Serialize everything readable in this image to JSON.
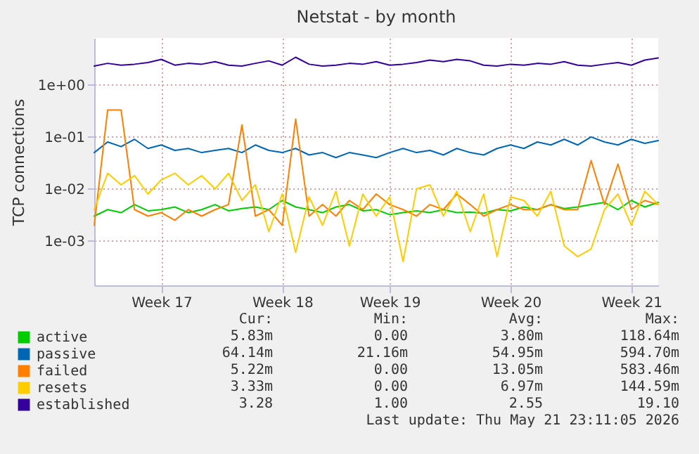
{
  "chart_data": {
    "type": "line",
    "title": "Netstat - by month",
    "ylabel": "TCP connections",
    "categories": [
      null,
      null,
      null,
      null,
      null,
      "Week 17",
      null,
      null,
      null,
      null,
      null,
      null,
      null,
      null,
      "Week 18",
      null,
      null,
      null,
      null,
      null,
      null,
      null,
      "Week 19",
      null,
      null,
      null,
      null,
      null,
      null,
      null,
      null,
      "Week 20",
      null,
      null,
      null,
      null,
      null,
      null,
      null,
      null,
      "Week 21",
      null,
      null
    ],
    "ylim": [
      0.00014,
      8
    ],
    "yticks": [
      {
        "value": 0.001,
        "label": "1e-03"
      },
      {
        "value": 0.01,
        "label": "1e-02"
      },
      {
        "value": 0.1,
        "label": "1e-01"
      },
      {
        "value": 1,
        "label": "1e+00"
      }
    ],
    "log": "y",
    "grid": true,
    "legend": "bottom left",
    "marker": "none",
    "series": [
      {
        "name": "active",
        "color": "#00cc00",
        "values": [
          0.003,
          0.004,
          0.0035,
          0.005,
          0.0038,
          0.004,
          0.0045,
          0.0035,
          0.004,
          0.005,
          0.0038,
          0.0042,
          0.0045,
          0.004,
          0.006,
          0.0045,
          0.004,
          0.0035,
          0.0045,
          0.005,
          0.0038,
          0.004,
          0.0032,
          0.0035,
          0.0038,
          0.0035,
          0.004,
          0.0035,
          0.0036,
          0.0034,
          0.004,
          0.0038,
          0.0045,
          0.004,
          0.005,
          0.0042,
          0.0045,
          0.005,
          0.0055,
          0.004,
          0.006,
          0.0045,
          0.0055
        ]
      },
      {
        "name": "passive",
        "color": "#0066b3",
        "values": [
          0.05,
          0.08,
          0.065,
          0.09,
          0.06,
          0.07,
          0.055,
          0.06,
          0.05,
          0.055,
          0.06,
          0.05,
          0.07,
          0.055,
          0.05,
          0.06,
          0.045,
          0.05,
          0.04,
          0.05,
          0.045,
          0.04,
          0.05,
          0.06,
          0.05,
          0.055,
          0.045,
          0.06,
          0.05,
          0.045,
          0.06,
          0.07,
          0.06,
          0.08,
          0.07,
          0.09,
          0.07,
          0.1,
          0.08,
          0.07,
          0.09,
          0.075,
          0.085
        ]
      },
      {
        "name": "failed",
        "color": "#ff8000",
        "values": [
          0.002,
          0.33,
          0.33,
          0.004,
          0.003,
          0.0035,
          0.0025,
          0.004,
          0.003,
          0.004,
          0.005,
          0.17,
          0.003,
          0.004,
          0.002,
          0.22,
          0.003,
          0.005,
          0.003,
          0.006,
          0.004,
          0.008,
          0.005,
          0.004,
          0.003,
          0.005,
          0.004,
          0.008,
          0.005,
          0.003,
          0.004,
          0.005,
          0.004,
          0.004,
          0.005,
          0.004,
          0.004,
          0.035,
          0.005,
          0.03,
          0.004,
          0.006,
          0.005
        ]
      },
      {
        "name": "resets",
        "color": "#ffcc00",
        "values": [
          0.004,
          0.02,
          0.012,
          0.018,
          0.008,
          0.015,
          0.02,
          0.012,
          0.018,
          0.01,
          0.02,
          0.006,
          0.012,
          0.0015,
          0.008,
          0.0006,
          0.007,
          0.002,
          0.009,
          0.0008,
          0.008,
          0.003,
          0.007,
          0.0004,
          0.01,
          0.012,
          0.003,
          0.009,
          0.0015,
          0.008,
          0.0005,
          0.007,
          0.006,
          0.003,
          0.009,
          0.0008,
          0.0005,
          0.0007,
          0.004,
          0.008,
          0.002,
          0.009,
          0.005
        ]
      },
      {
        "name": "established",
        "color": "#330099",
        "values": [
          2.3,
          2.6,
          2.4,
          2.5,
          2.7,
          3.1,
          2.4,
          2.6,
          2.5,
          2.8,
          2.4,
          2.3,
          2.6,
          2.9,
          2.4,
          3.4,
          2.5,
          2.3,
          2.4,
          2.6,
          2.5,
          2.8,
          2.4,
          2.5,
          2.7,
          3.0,
          2.8,
          3.1,
          2.9,
          2.4,
          2.3,
          2.5,
          2.4,
          2.6,
          2.5,
          2.8,
          2.4,
          2.3,
          2.5,
          2.7,
          2.4,
          3.0,
          3.3
        ]
      }
    ],
    "annotations": [
      "Cur:",
      "Min:",
      "Avg:",
      "Max:",
      "5.83m",
      "0.00",
      "3.80m",
      "118.64m",
      "64.14m",
      "21.16m",
      "54.95m",
      "594.70m",
      "5.22m",
      "0.00",
      "13.05m",
      "583.46m",
      "3.33m",
      "0.00",
      "6.97m",
      "144.59m",
      "3.28",
      "1.00",
      "2.55",
      "19.10",
      "Last update: Thu May 21 23:11:05 2026"
    ]
  }
}
